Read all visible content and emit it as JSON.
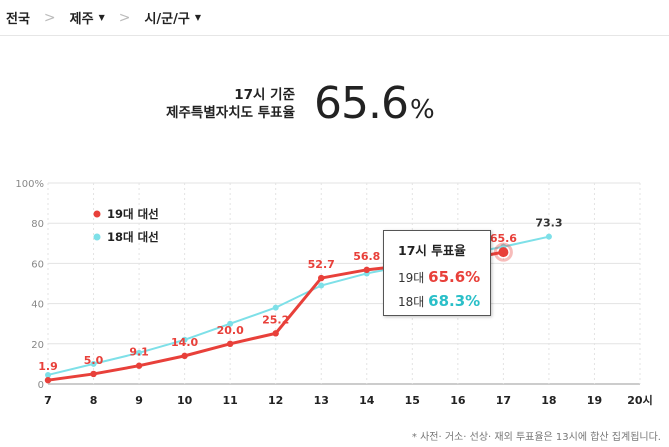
{
  "nav": {
    "items": [
      {
        "label": "전국",
        "dropdown": false
      },
      {
        "label": "제주",
        "dropdown": true
      },
      {
        "label": "시/군/구",
        "dropdown": true
      }
    ],
    "separator": ">",
    "caret": "▼"
  },
  "headline": {
    "line1": "17시 기준",
    "line2": "제주특별자치도 투표율",
    "value": "65.6",
    "unit": "%"
  },
  "tooltip": {
    "title": "17시 투표율",
    "row19_label": "19대",
    "row19_value": "65.6%",
    "row18_label": "18대",
    "row18_value": "68.3%"
  },
  "footnote": "* 사전· 거소· 선상· 재외 투표율은 13시에 합산 집계됩니다.",
  "chart_data": {
    "type": "line",
    "x": [
      7,
      8,
      9,
      10,
      11,
      12,
      13,
      14,
      15,
      16,
      17,
      18,
      19,
      20
    ],
    "x_tick_labels": [
      "7",
      "8",
      "9",
      "10",
      "11",
      "12",
      "13",
      "14",
      "15",
      "16",
      "17",
      "18",
      "19",
      "20시"
    ],
    "ylim": [
      0,
      100
    ],
    "y_ticks": [
      0,
      20,
      40,
      60,
      80,
      100
    ],
    "y_tick_labels": [
      "0",
      "20",
      "40",
      "60",
      "80",
      "100%"
    ],
    "grid": true,
    "legend_position": "top-left",
    "series": [
      {
        "name": "19대 대선",
        "color": "#e8403a",
        "x": [
          7,
          8,
          9,
          10,
          11,
          12,
          13,
          14,
          15,
          16,
          17
        ],
        "values": [
          1.9,
          5.0,
          9.1,
          14.0,
          20.0,
          25.2,
          52.7,
          56.8,
          59.3,
          61.4,
          65.6
        ],
        "labels": [
          "1.9",
          "5.0",
          "9.1",
          "14.0",
          "20.0",
          "25.2",
          "52.7",
          "56.8",
          "",
          "",
          "65.6"
        ]
      },
      {
        "name": "18대 대선",
        "color": "#7ee0e8",
        "x": [
          7,
          8,
          9,
          10,
          11,
          12,
          13,
          14,
          15,
          16,
          17,
          18
        ],
        "values": [
          4.5,
          10.0,
          15.5,
          22.0,
          30.0,
          38.0,
          49.0,
          55.0,
          59.5,
          64.0,
          68.3,
          73.3
        ],
        "labels": [
          "",
          "",
          "",
          "",
          "",
          "",
          "",
          "",
          "",
          "",
          "",
          "73.3"
        ]
      }
    ],
    "highlight": {
      "series": 0,
      "x": 17
    }
  }
}
